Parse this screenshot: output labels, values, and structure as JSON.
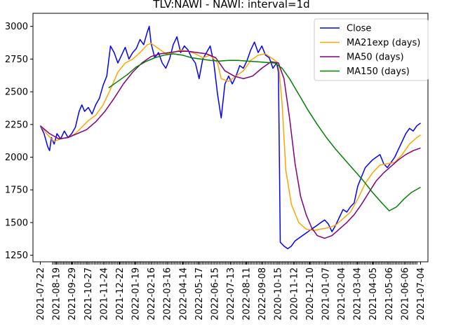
{
  "chart_data": {
    "type": "line",
    "title": "TLV:NAWI - NAWI: interval=1d",
    "xlabel": "",
    "ylabel": "",
    "ylim": [
      1200,
      3100
    ],
    "yticks": [
      1250,
      1500,
      1750,
      2000,
      2250,
      2500,
      2750,
      3000
    ],
    "x_tick_labels": [
      "2021-07-22",
      "2021-08-19",
      "2021-09-29",
      "2021-10-27",
      "2021-11-24",
      "2021-12-22",
      "2022-01-19",
      "2022-02-16",
      "2022-03-16",
      "2022-04-14",
      "2022-05-17",
      "2022-06-15",
      "2022-07-13",
      "2022-08-11",
      "2022-09-08",
      "2020-10-15",
      "2020-11-12",
      "2020-12-10",
      "2021-01-07",
      "2021-02-04",
      "2021-03-04",
      "2021-04-05",
      "2021-05-06",
      "2021-06-06",
      "2021-07-04"
    ],
    "legend_position": "upper right",
    "grid": false,
    "series": [
      {
        "name": "Close",
        "color": "#0000ff",
        "points": [
          [
            0,
            2240
          ],
          [
            0.4,
            2180
          ],
          [
            0.8,
            2080
          ],
          [
            1.0,
            2050
          ],
          [
            1.2,
            2150
          ],
          [
            1.5,
            2100
          ],
          [
            1.8,
            2180
          ],
          [
            2.2,
            2140
          ],
          [
            2.6,
            2200
          ],
          [
            3.0,
            2150
          ],
          [
            3.4,
            2180
          ],
          [
            3.8,
            2230
          ],
          [
            4.2,
            2350
          ],
          [
            4.5,
            2400
          ],
          [
            4.8,
            2350
          ],
          [
            5.2,
            2380
          ],
          [
            5.6,
            2330
          ],
          [
            6.0,
            2400
          ],
          [
            6.4,
            2450
          ],
          [
            6.8,
            2550
          ],
          [
            7.2,
            2620
          ],
          [
            7.6,
            2850
          ],
          [
            8.0,
            2800
          ],
          [
            8.4,
            2720
          ],
          [
            8.8,
            2780
          ],
          [
            9.2,
            2840
          ],
          [
            9.6,
            2750
          ],
          [
            10.0,
            2800
          ],
          [
            10.4,
            2830
          ],
          [
            10.8,
            2900
          ],
          [
            11.2,
            2860
          ],
          [
            11.6,
            2960
          ],
          [
            11.8,
            3000
          ],
          [
            12.0,
            2870
          ],
          [
            12.4,
            2760
          ],
          [
            12.8,
            2800
          ],
          [
            13.2,
            2720
          ],
          [
            13.6,
            2680
          ],
          [
            14.0,
            2750
          ],
          [
            14.4,
            2860
          ],
          [
            14.8,
            2920
          ],
          [
            15.2,
            2800
          ],
          [
            15.6,
            2850
          ],
          [
            16.0,
            2820
          ],
          [
            16.4,
            2760
          ],
          [
            16.8,
            2720
          ],
          [
            17.2,
            2600
          ],
          [
            17.6,
            2750
          ],
          [
            18.0,
            2800
          ],
          [
            18.4,
            2850
          ],
          [
            18.8,
            2720
          ],
          [
            19.2,
            2480
          ],
          [
            19.6,
            2300
          ],
          [
            20.0,
            2560
          ],
          [
            20.4,
            2620
          ],
          [
            20.8,
            2560
          ],
          [
            21.2,
            2620
          ],
          [
            21.6,
            2700
          ],
          [
            22.0,
            2680
          ],
          [
            22.4,
            2740
          ],
          [
            22.8,
            2820
          ],
          [
            23.2,
            2880
          ],
          [
            23.6,
            2800
          ],
          [
            24.0,
            2850
          ],
          [
            24.4,
            2780
          ],
          [
            24.8,
            2760
          ],
          [
            25.2,
            2680
          ],
          [
            25.6,
            2720
          ],
          [
            25.8,
            2650
          ],
          [
            26.0,
            1350
          ],
          [
            26.4,
            1320
          ],
          [
            26.8,
            1300
          ],
          [
            27.2,
            1320
          ],
          [
            27.6,
            1360
          ],
          [
            28.0,
            1380
          ],
          [
            28.4,
            1400
          ],
          [
            28.8,
            1420
          ],
          [
            29.2,
            1440
          ],
          [
            29.6,
            1460
          ],
          [
            30.0,
            1480
          ],
          [
            30.4,
            1500
          ],
          [
            30.8,
            1520
          ],
          [
            31.2,
            1490
          ],
          [
            31.6,
            1430
          ],
          [
            32.0,
            1480
          ],
          [
            32.4,
            1540
          ],
          [
            32.8,
            1600
          ],
          [
            33.2,
            1580
          ],
          [
            33.6,
            1620
          ],
          [
            34.0,
            1650
          ],
          [
            34.4,
            1780
          ],
          [
            34.8,
            1850
          ],
          [
            35.2,
            1920
          ],
          [
            35.6,
            1950
          ],
          [
            36.0,
            1980
          ],
          [
            36.4,
            2000
          ],
          [
            36.8,
            2020
          ],
          [
            37.2,
            1950
          ],
          [
            37.6,
            1920
          ],
          [
            38.0,
            1960
          ],
          [
            38.4,
            2000
          ],
          [
            38.8,
            2060
          ],
          [
            39.2,
            2120
          ],
          [
            39.6,
            2180
          ],
          [
            40.0,
            2220
          ],
          [
            40.4,
            2200
          ],
          [
            40.8,
            2240
          ],
          [
            41.2,
            2260
          ]
        ]
      },
      {
        "name": "MA21exp (days)",
        "color": "#ffa500",
        "points": [
          [
            0,
            2240
          ],
          [
            0.8,
            2170
          ],
          [
            1.5,
            2120
          ],
          [
            2.2,
            2140
          ],
          [
            3.0,
            2150
          ],
          [
            3.8,
            2180
          ],
          [
            4.5,
            2230
          ],
          [
            5.2,
            2280
          ],
          [
            6.0,
            2320
          ],
          [
            6.8,
            2400
          ],
          [
            7.6,
            2520
          ],
          [
            8.4,
            2650
          ],
          [
            9.2,
            2720
          ],
          [
            10.0,
            2750
          ],
          [
            10.8,
            2800
          ],
          [
            11.6,
            2860
          ],
          [
            12.0,
            2870
          ],
          [
            12.8,
            2830
          ],
          [
            13.6,
            2790
          ],
          [
            14.4,
            2800
          ],
          [
            15.2,
            2820
          ],
          [
            16.0,
            2810
          ],
          [
            16.8,
            2790
          ],
          [
            17.6,
            2760
          ],
          [
            18.4,
            2780
          ],
          [
            19.2,
            2720
          ],
          [
            19.6,
            2600
          ],
          [
            20.4,
            2580
          ],
          [
            21.2,
            2620
          ],
          [
            22.0,
            2660
          ],
          [
            22.8,
            2740
          ],
          [
            23.6,
            2780
          ],
          [
            24.4,
            2790
          ],
          [
            25.2,
            2750
          ],
          [
            25.8,
            2720
          ],
          [
            26.2,
            2400
          ],
          [
            26.6,
            1900
          ],
          [
            27.2,
            1640
          ],
          [
            28.0,
            1500
          ],
          [
            28.8,
            1450
          ],
          [
            29.6,
            1440
          ],
          [
            30.4,
            1450
          ],
          [
            31.2,
            1460
          ],
          [
            32.0,
            1480
          ],
          [
            32.8,
            1530
          ],
          [
            33.6,
            1580
          ],
          [
            34.4,
            1680
          ],
          [
            35.2,
            1800
          ],
          [
            36.0,
            1880
          ],
          [
            36.8,
            1940
          ],
          [
            37.6,
            1950
          ],
          [
            38.4,
            1960
          ],
          [
            39.2,
            2020
          ],
          [
            40.0,
            2100
          ],
          [
            40.8,
            2150
          ],
          [
            41.2,
            2170
          ]
        ]
      },
      {
        "name": "MA50 (days)",
        "color": "#800080",
        "points": [
          [
            0,
            2240
          ],
          [
            1.0,
            2180
          ],
          [
            2.0,
            2140
          ],
          [
            3.0,
            2150
          ],
          [
            4.0,
            2180
          ],
          [
            5.0,
            2210
          ],
          [
            6.0,
            2270
          ],
          [
            7.0,
            2350
          ],
          [
            8.0,
            2450
          ],
          [
            9.0,
            2560
          ],
          [
            10.0,
            2650
          ],
          [
            11.0,
            2720
          ],
          [
            12.0,
            2770
          ],
          [
            13.0,
            2790
          ],
          [
            14.0,
            2800
          ],
          [
            15.0,
            2810
          ],
          [
            16.0,
            2810
          ],
          [
            17.0,
            2800
          ],
          [
            18.0,
            2790
          ],
          [
            19.0,
            2760
          ],
          [
            20.0,
            2660
          ],
          [
            21.0,
            2620
          ],
          [
            22.0,
            2600
          ],
          [
            23.0,
            2620
          ],
          [
            24.0,
            2680
          ],
          [
            25.0,
            2730
          ],
          [
            25.8,
            2720
          ],
          [
            26.4,
            2600
          ],
          [
            27.0,
            2300
          ],
          [
            27.6,
            1950
          ],
          [
            28.2,
            1700
          ],
          [
            28.8,
            1560
          ],
          [
            29.4,
            1460
          ],
          [
            30.0,
            1400
          ],
          [
            30.8,
            1380
          ],
          [
            31.6,
            1400
          ],
          [
            32.4,
            1450
          ],
          [
            33.2,
            1500
          ],
          [
            34.0,
            1560
          ],
          [
            34.8,
            1640
          ],
          [
            35.6,
            1730
          ],
          [
            36.4,
            1820
          ],
          [
            37.2,
            1880
          ],
          [
            38.0,
            1930
          ],
          [
            38.8,
            1980
          ],
          [
            39.6,
            2020
          ],
          [
            40.4,
            2050
          ],
          [
            41.2,
            2070
          ]
        ]
      },
      {
        "name": "MA150 (days)",
        "color": "#008000",
        "points": [
          [
            7.4,
            2530
          ],
          [
            8.4,
            2580
          ],
          [
            9.4,
            2630
          ],
          [
            10.4,
            2690
          ],
          [
            11.4,
            2730
          ],
          [
            12.4,
            2760
          ],
          [
            13.4,
            2780
          ],
          [
            14.4,
            2790
          ],
          [
            15.4,
            2780
          ],
          [
            16.4,
            2760
          ],
          [
            17.4,
            2750
          ],
          [
            18.4,
            2740
          ],
          [
            19.4,
            2735
          ],
          [
            20.4,
            2740
          ],
          [
            21.4,
            2740
          ],
          [
            22.4,
            2735
          ],
          [
            23.4,
            2730
          ],
          [
            24.4,
            2725
          ],
          [
            25.4,
            2720
          ],
          [
            26.2,
            2680
          ],
          [
            27.0,
            2600
          ],
          [
            28.0,
            2480
          ],
          [
            29.0,
            2360
          ],
          [
            30.0,
            2250
          ],
          [
            31.0,
            2150
          ],
          [
            32.0,
            2060
          ],
          [
            33.0,
            1980
          ],
          [
            34.0,
            1900
          ],
          [
            35.0,
            1820
          ],
          [
            36.0,
            1730
          ],
          [
            37.0,
            1650
          ],
          [
            37.8,
            1590
          ],
          [
            38.6,
            1620
          ],
          [
            39.4,
            1680
          ],
          [
            40.2,
            1730
          ],
          [
            41.2,
            1770
          ]
        ]
      }
    ]
  }
}
